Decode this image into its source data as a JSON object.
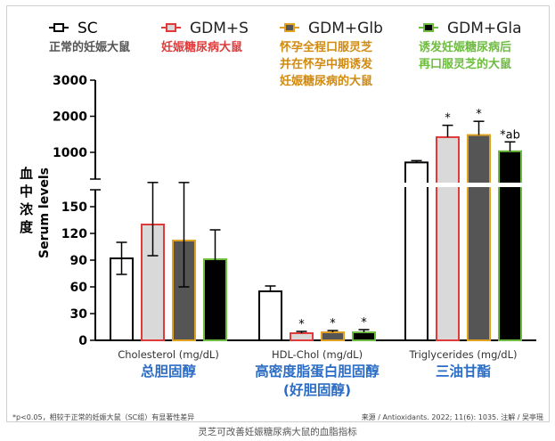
{
  "chart_data": {
    "type": "bar",
    "ylabel_zh": "血中浓度",
    "ylabel_en": "Serum levels",
    "y_break": {
      "lower_range": [
        0,
        150
      ],
      "upper_range": [
        1000,
        3000
      ]
    },
    "ticks_lower": [
      0,
      30,
      60,
      90,
      120,
      150
    ],
    "ticks_upper": [
      1000,
      2000,
      3000
    ],
    "tick_labels_lower": [
      "0",
      "30",
      "60",
      "90",
      "120",
      "150"
    ],
    "tick_labels_upper": [
      "1000",
      "2000",
      "3000"
    ],
    "series": [
      {
        "name": "SC",
        "desc": "正常的妊娠大鼠",
        "fill": "#ffffff",
        "border": "#000000",
        "label_color": "#000000",
        "desc_color": "#555555"
      },
      {
        "name": "GDM+S",
        "desc": "妊娠糖尿病大鼠",
        "fill": "#d9d9d9",
        "border": "#e03a3a",
        "label_color": "#222222",
        "desc_color": "#e03a3a"
      },
      {
        "name": "GDM+Glb",
        "desc": "怀孕全程口服灵芝并在怀孕中期诱发妊娠糖尿病的大鼠",
        "desc_lines": [
          "怀孕全程口服灵芝",
          "并在怀孕中期诱发",
          "妊娠糖尿病的大鼠"
        ],
        "fill": "#555555",
        "border": "#e0a020",
        "label_color": "#222222",
        "desc_color": "#d08a10"
      },
      {
        "name": "GDM+Gla",
        "desc": "诱发妊娠糖尿病后再口服灵芝的大鼠",
        "desc_lines": [
          "诱发妊娠糖尿病后",
          "再口服灵芝的大鼠"
        ],
        "fill": "#000000",
        "border": "#6dbb3f",
        "label_color": "#222222",
        "desc_color": "#6dbb3f"
      }
    ],
    "groups": [
      {
        "label": "Cholesterol (mg/dL)",
        "label_zh": "总胆固醇",
        "label_zh_lines": [
          "总胆固醇"
        ],
        "scale": "lower",
        "values": [
          92,
          130,
          112,
          91
        ],
        "errors": [
          18,
          35,
          52,
          33
        ],
        "stars": [
          "",
          "",
          "",
          ""
        ]
      },
      {
        "label": "HDL-Chol (mg/dL)",
        "label_zh": "高密度脂蛋白胆固醇（好胆固醇）",
        "label_zh_lines": [
          "高密度脂蛋白胆固醇",
          "(好胆固醇)"
        ],
        "scale": "lower",
        "values": [
          55,
          8,
          9,
          9
        ],
        "errors": [
          6,
          2,
          2,
          3
        ],
        "stars": [
          "",
          "*",
          "*",
          "*"
        ]
      },
      {
        "label": "Triglycerides (mg/dL)",
        "label_zh": "三油甘酯",
        "label_zh_lines": [
          "三油甘酯"
        ],
        "scale": "upper",
        "values": [
          720,
          1420,
          1480,
          1030
        ],
        "errors": [
          50,
          330,
          380,
          260
        ],
        "stars": [
          "",
          "*",
          "*",
          "*ab"
        ]
      }
    ]
  },
  "footnote_left": "*p<0.05，相较于正常的妊娠大鼠（SC组）有显著性差异",
  "footnote_right": "来源 / Antioxidants. 2022; 11(6): 1035.   注解 / 吴亭瑶",
  "caption": "灵芝可改善妊娠糖尿病大鼠的血脂指标"
}
